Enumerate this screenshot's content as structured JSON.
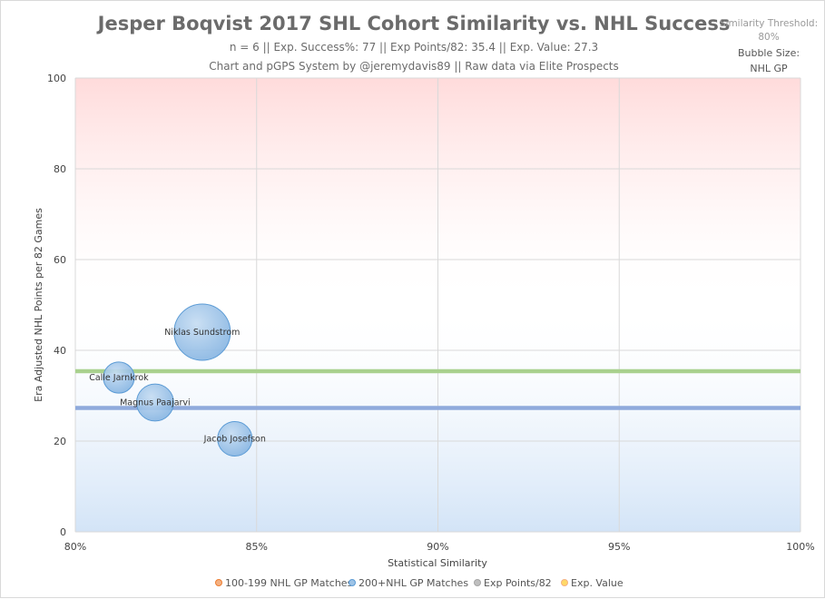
{
  "chart_data": {
    "type": "scatter",
    "title": "Jesper Boqvist 2017 SHL Cohort Similarity vs. NHL Success",
    "subtitle_line1": "n = 6 || Exp. Success%: 77 || Exp Points/82: 35.4 || Exp. Value: 27.3",
    "subtitle_line2": "Chart and pGPS System by @jeremydavis89 || Raw data via Elite Prospects",
    "side_note": {
      "threshold_label": "Similarity Threshold:",
      "threshold_value": "80%",
      "bubble_size_label": "Bubble Size:",
      "bubble_size_value": "NHL GP"
    },
    "xlabel": "Statistical Similarity",
    "ylabel": "Era Adjusted NHL Points per 82 Games",
    "xlim": [
      80,
      100
    ],
    "ylim": [
      0,
      100
    ],
    "x_ticks": [
      {
        "value": 80,
        "label": "80%"
      },
      {
        "value": 85,
        "label": "85%"
      },
      {
        "value": 90,
        "label": "90%"
      },
      {
        "value": 95,
        "label": "95%"
      },
      {
        "value": 100,
        "label": "100%"
      }
    ],
    "y_ticks": [
      {
        "value": 0,
        "label": "0"
      },
      {
        "value": 20,
        "label": "20"
      },
      {
        "value": 40,
        "label": "40"
      },
      {
        "value": 60,
        "label": "60"
      },
      {
        "value": 80,
        "label": "80"
      },
      {
        "value": 100,
        "label": "100"
      }
    ],
    "series": [
      {
        "name": "200+NHL GP Matches",
        "color": "#9dc3e6",
        "stroke": "#5b9bd5",
        "points": [
          {
            "label": "Niklas Sundstrom",
            "x": 83.5,
            "y": 44.0,
            "size": 990
          },
          {
            "label": "Calle Jarnkrok",
            "x": 81.2,
            "y": 34.0,
            "size": 300
          },
          {
            "label": "Magnus Paajarvi",
            "x": 82.2,
            "y": 28.5,
            "size": 430
          },
          {
            "label": "Jacob Josefson",
            "x": 84.4,
            "y": 20.5,
            "size": 370
          }
        ]
      }
    ],
    "reference_lines": [
      {
        "name": "Exp Points/82",
        "value": 35.4,
        "color": "#a9d18e"
      },
      {
        "name": "Exp. Value",
        "value": 27.3,
        "color": "#8faadc"
      }
    ],
    "legend": [
      {
        "label": "100-199 NHL GP Matches",
        "color": "#f4b183",
        "stroke": "#ed7d31"
      },
      {
        "label": "200+NHL GP Matches",
        "color": "#9dc3e6",
        "stroke": "#5b9bd5"
      },
      {
        "label": "Exp Points/82",
        "color": "#bfbfbf",
        "stroke": "#a5a5a5"
      },
      {
        "label": "Exp. Value",
        "color": "#ffd966",
        "stroke": "#f4b183"
      }
    ],
    "grid": true,
    "legend_position": "bottom"
  }
}
